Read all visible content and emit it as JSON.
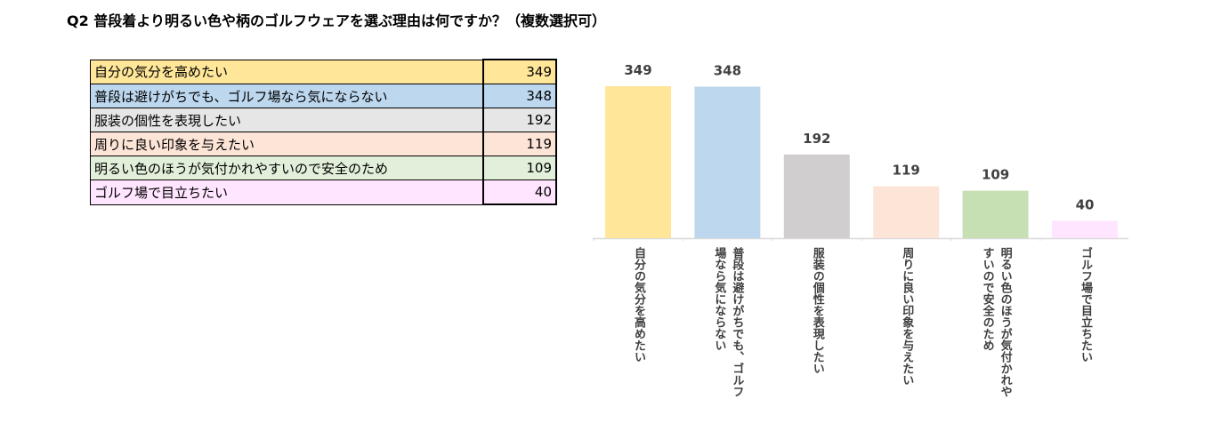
{
  "title": "Q2 普段着より明るい色や柄のゴルフウェアを選ぶ理由は何ですか？（複数選択可）",
  "table": {
    "rows": [
      {
        "label": "自分の気分を高めたい",
        "value": "349",
        "color": "#FFE699"
      },
      {
        "label": "普段は避けがちでも、ゴルフ場なら気にならない",
        "value": "348",
        "color": "#BDD7EE"
      },
      {
        "label": "服装の個性を表現したい",
        "value": "192",
        "color": "#E7E6E6"
      },
      {
        "label": "周りに良い印象を与えたい",
        "value": "119",
        "color": "#FCE4D6"
      },
      {
        "label": "明るい色のほうが気付かれやすいので安全のため",
        "value": "109",
        "color": "#E2EFDA"
      },
      {
        "label": "ゴルフ場で目立ちたい",
        "value": "40",
        "color": "#FFE5FF"
      }
    ]
  },
  "chart_data": {
    "type": "bar",
    "categories": [
      "自分の気分を高めたい",
      "普段は避けがちでも、ゴルフ場なら気にならない",
      "服装の個性を表現したい",
      "周りに良い印象を与えたい",
      "明るい色のほうが気付かれやすいので安全のため",
      "ゴルフ場で目立ちたい"
    ],
    "axis_labels": [
      "自分の気分を高めたい",
      "普段は避けがちでも、ゴルフ\n場なら気にならない",
      "服装の個性を表現したい",
      "周りに良い印象を与えたい",
      "明るい色のほうが気付かれや\nすいので安全のため",
      "ゴルフ場で目立ちたい"
    ],
    "values": [
      349,
      348,
      192,
      119,
      109,
      40
    ],
    "colors": [
      "#FFE699",
      "#BDD7EE",
      "#D0CECE",
      "#FCE4D6",
      "#C6E0B4",
      "#FFE5FF"
    ],
    "title": "",
    "xlabel": "",
    "ylabel": "",
    "ylim": [
      0,
      349
    ],
    "grid": false,
    "legend": "none",
    "data_labels": true
  }
}
